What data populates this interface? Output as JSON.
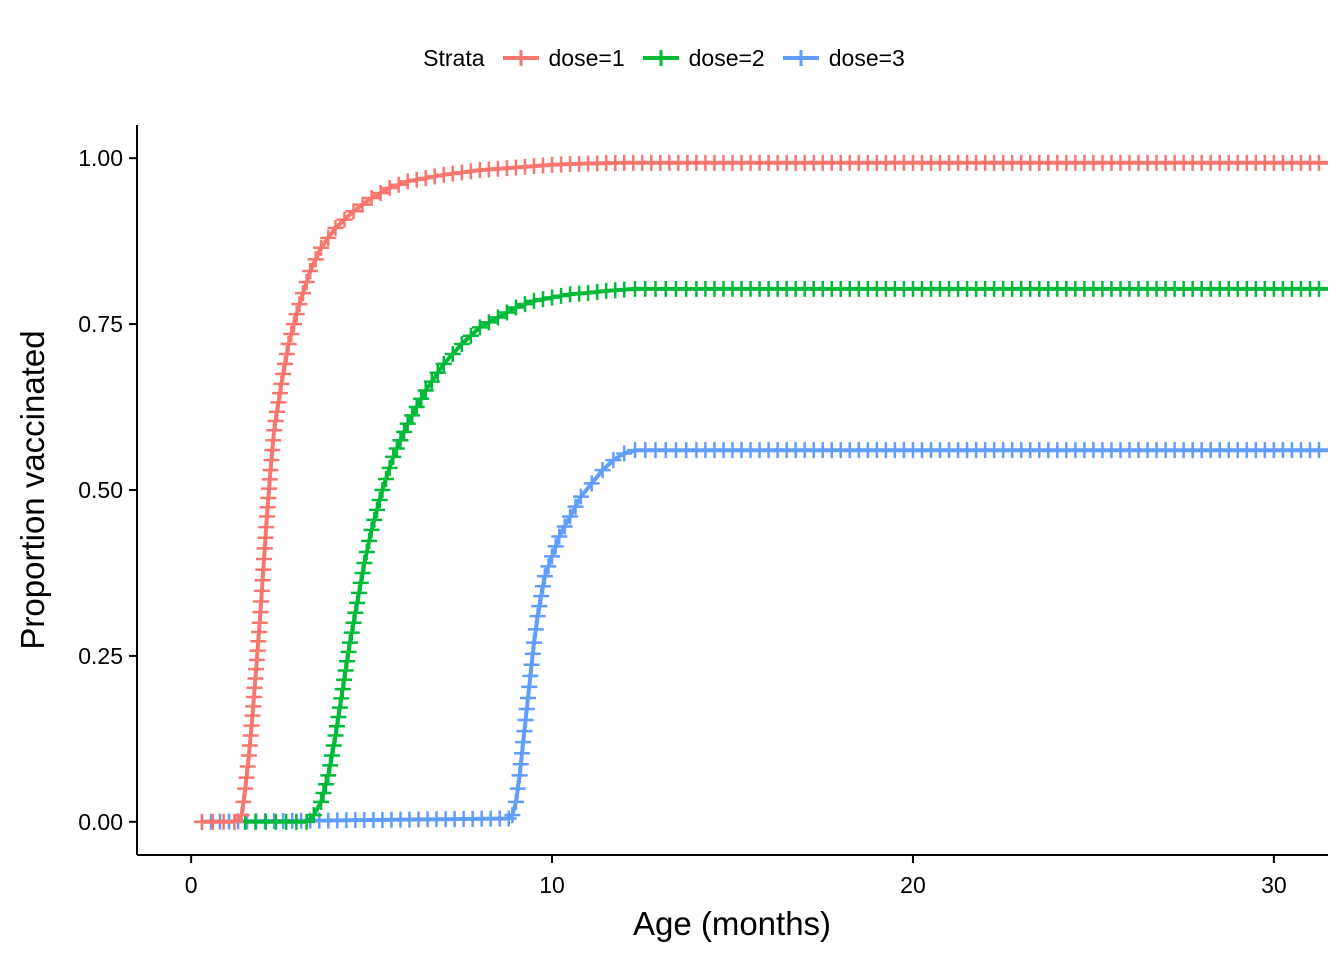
{
  "chart_data": {
    "type": "line",
    "xlabel": "Age (months)",
    "ylabel": "Proportion vaccinated",
    "xlim": [
      -1.5,
      31.5
    ],
    "ylim": [
      -0.05,
      1.05
    ],
    "x_ticks": [
      0,
      10,
      20,
      30
    ],
    "x_tick_labels": [
      "0",
      "10",
      "20",
      "30"
    ],
    "y_ticks": [
      0,
      0.25,
      0.5,
      0.75,
      1.0
    ],
    "y_tick_labels": [
      "0.00",
      "0.25",
      "0.50",
      "0.75",
      "1.00"
    ],
    "grid": false,
    "legend": {
      "title": "Strata",
      "position": "top",
      "entries": [
        "dose=1",
        "dose=2",
        "dose=3"
      ]
    },
    "censor_marks": true,
    "series": [
      {
        "name": "dose=1",
        "color": "#F8766D",
        "x": [
          0.3,
          1.2,
          1.4,
          1.5,
          1.6,
          1.7,
          1.8,
          1.9,
          2.0,
          2.1,
          2.2,
          2.3,
          2.5,
          2.7,
          3.0,
          3.3,
          3.6,
          4.0,
          4.5,
          5.0,
          5.5,
          6.0,
          7.0,
          8.0,
          9.0,
          10.0,
          11.0,
          12.0,
          14.0,
          18.0,
          22.0,
          26.0,
          31.5
        ],
        "y": [
          0.0,
          0.0,
          0.01,
          0.05,
          0.1,
          0.16,
          0.23,
          0.3,
          0.38,
          0.46,
          0.53,
          0.59,
          0.66,
          0.72,
          0.78,
          0.83,
          0.865,
          0.895,
          0.92,
          0.94,
          0.955,
          0.965,
          0.975,
          0.982,
          0.986,
          0.99,
          0.992,
          0.993,
          0.993,
          0.993,
          0.993,
          0.993,
          0.993
        ]
      },
      {
        "name": "dose=2",
        "color": "#00BA38",
        "x": [
          1.5,
          3.2,
          3.4,
          3.6,
          3.8,
          4.0,
          4.2,
          4.4,
          4.6,
          4.8,
          5.0,
          5.3,
          5.6,
          6.0,
          6.5,
          7.0,
          7.5,
          8.0,
          8.5,
          9.0,
          9.5,
          10.0,
          10.5,
          11.0,
          11.5,
          12.0,
          12.3,
          14.0,
          20.0,
          31.5
        ],
        "y": [
          0.0,
          0.0,
          0.01,
          0.03,
          0.07,
          0.13,
          0.2,
          0.27,
          0.33,
          0.39,
          0.44,
          0.5,
          0.55,
          0.6,
          0.65,
          0.69,
          0.72,
          0.745,
          0.76,
          0.775,
          0.785,
          0.79,
          0.795,
          0.797,
          0.8,
          0.802,
          0.803,
          0.803,
          0.803,
          0.803
        ]
      },
      {
        "name": "dose=3",
        "color": "#619CFF",
        "x": [
          0.3,
          8.8,
          8.9,
          9.0,
          9.1,
          9.2,
          9.3,
          9.4,
          9.5,
          9.6,
          9.7,
          9.8,
          10.0,
          10.2,
          10.5,
          10.8,
          11.1,
          11.4,
          11.7,
          12.0,
          12.3,
          14.0,
          20.0,
          31.5
        ],
        "y": [
          0.0,
          0.005,
          0.01,
          0.03,
          0.07,
          0.12,
          0.17,
          0.22,
          0.27,
          0.31,
          0.34,
          0.37,
          0.4,
          0.43,
          0.46,
          0.49,
          0.51,
          0.53,
          0.545,
          0.555,
          0.56,
          0.56,
          0.56,
          0.56
        ]
      }
    ]
  }
}
